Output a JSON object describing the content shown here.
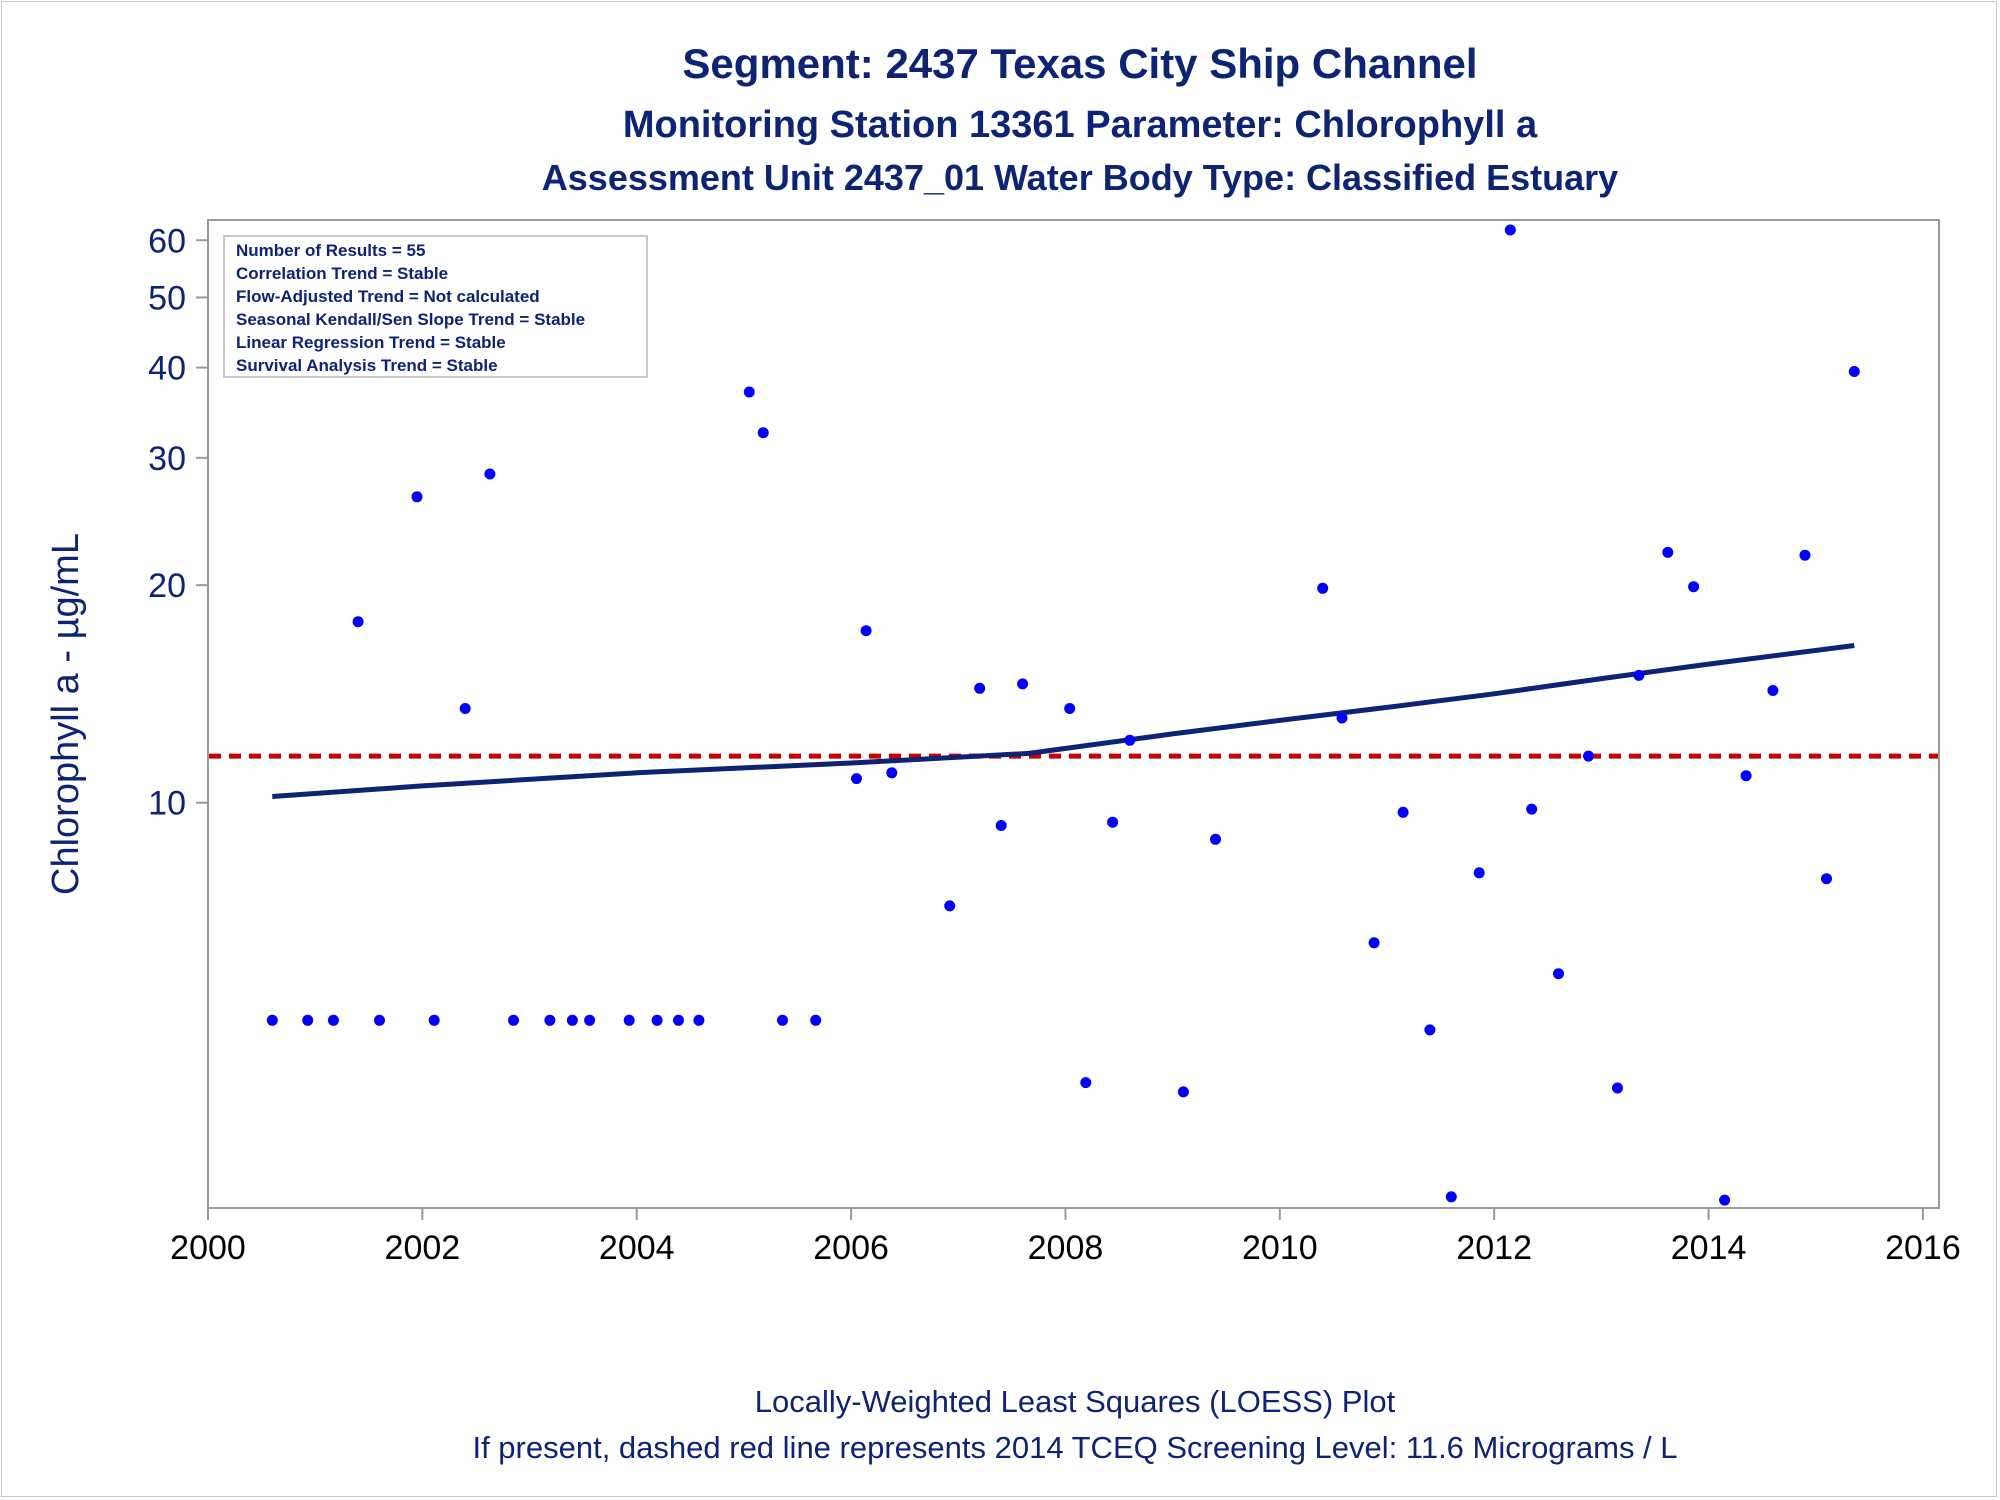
{
  "titles": [
    "Segment: 2437  Texas City Ship Channel",
    "Monitoring Station 13361 Parameter: Chlorophyll a",
    "Assessment Unit 2437_01   Water Body Type: Classified Estuary"
  ],
  "stats_box": [
    "Number of Results = 55",
    "Correlation Trend = Stable",
    "Flow-Adjusted Trend = Not calculated",
    "Seasonal Kendall/Sen Slope Trend = Stable",
    "Linear Regression Trend = Stable",
    "Survival Analysis Trend = Stable"
  ],
  "footnotes": [
    "Locally-Weighted Least Squares (LOESS) Plot",
    "If present, dashed red line represents 2014 TCEQ Screening Level: 11.6 Micrograms / L"
  ],
  "chart_data": {
    "type": "scatter",
    "ylabel": "Chlorophyll a -  µg/mL",
    "xlabel": "",
    "x_ticks": [
      2000,
      2002,
      2004,
      2006,
      2008,
      2010,
      2012,
      2014,
      2016
    ],
    "y_ticks": [
      10,
      20,
      30,
      40,
      50,
      60
    ],
    "y_scale": "log",
    "xlim": [
      2000,
      2016.15
    ],
    "ylim": [
      2.75,
      64
    ],
    "grid": false,
    "colors": {
      "points": "#0000ff",
      "loess": "#0d2373",
      "screening": "#cc0000",
      "text": "#0d2373",
      "axis": "#9a9a9a"
    },
    "screening_level": 11.6,
    "points": [
      [
        2000.6,
        5.0
      ],
      [
        2000.93,
        5.0
      ],
      [
        2001.17,
        5.0
      ],
      [
        2001.4,
        17.8
      ],
      [
        2001.6,
        5.0
      ],
      [
        2001.95,
        26.5
      ],
      [
        2002.11,
        5.0
      ],
      [
        2002.4,
        13.5
      ],
      [
        2002.63,
        28.5
      ],
      [
        2002.85,
        5.0
      ],
      [
        2003.19,
        5.0
      ],
      [
        2003.4,
        5.0
      ],
      [
        2003.56,
        5.0
      ],
      [
        2003.93,
        5.0
      ],
      [
        2004.19,
        5.0
      ],
      [
        2004.39,
        5.0
      ],
      [
        2004.58,
        5.0
      ],
      [
        2005.05,
        37.0
      ],
      [
        2005.18,
        32.5
      ],
      [
        2005.36,
        5.0
      ],
      [
        2005.67,
        5.0
      ],
      [
        2006.05,
        10.8
      ],
      [
        2006.14,
        17.3
      ],
      [
        2006.38,
        11.0
      ],
      [
        2006.92,
        7.2
      ],
      [
        2007.2,
        14.4
      ],
      [
        2007.4,
        9.3
      ],
      [
        2007.6,
        14.6
      ],
      [
        2008.04,
        13.5
      ],
      [
        2008.19,
        4.1
      ],
      [
        2008.44,
        9.4
      ],
      [
        2008.6,
        12.2
      ],
      [
        2009.1,
        3.98
      ],
      [
        2009.4,
        8.9
      ],
      [
        2010.4,
        19.8
      ],
      [
        2010.58,
        13.1
      ],
      [
        2010.88,
        6.4
      ],
      [
        2011.15,
        9.7
      ],
      [
        2011.4,
        4.85
      ],
      [
        2011.6,
        2.85
      ],
      [
        2011.86,
        8.0
      ],
      [
        2012.15,
        62.0
      ],
      [
        2012.35,
        9.8
      ],
      [
        2012.6,
        5.8
      ],
      [
        2012.88,
        11.6
      ],
      [
        2013.15,
        4.03
      ],
      [
        2013.35,
        15.0
      ],
      [
        2013.62,
        22.2
      ],
      [
        2013.86,
        19.9
      ],
      [
        2014.15,
        2.82
      ],
      [
        2014.35,
        10.9
      ],
      [
        2014.6,
        14.3
      ],
      [
        2014.9,
        22.0
      ],
      [
        2015.1,
        7.85
      ],
      [
        2015.36,
        39.5
      ]
    ],
    "loess": [
      [
        2000.6,
        10.2
      ],
      [
        2002.0,
        10.55
      ],
      [
        2004.0,
        11.0
      ],
      [
        2006.0,
        11.35
      ],
      [
        2007.66,
        11.7
      ],
      [
        2009.0,
        12.45
      ],
      [
        2010.0,
        13.0
      ],
      [
        2011.0,
        13.55
      ],
      [
        2012.0,
        14.15
      ],
      [
        2013.0,
        14.85
      ],
      [
        2014.0,
        15.55
      ],
      [
        2015.36,
        16.5
      ]
    ]
  }
}
